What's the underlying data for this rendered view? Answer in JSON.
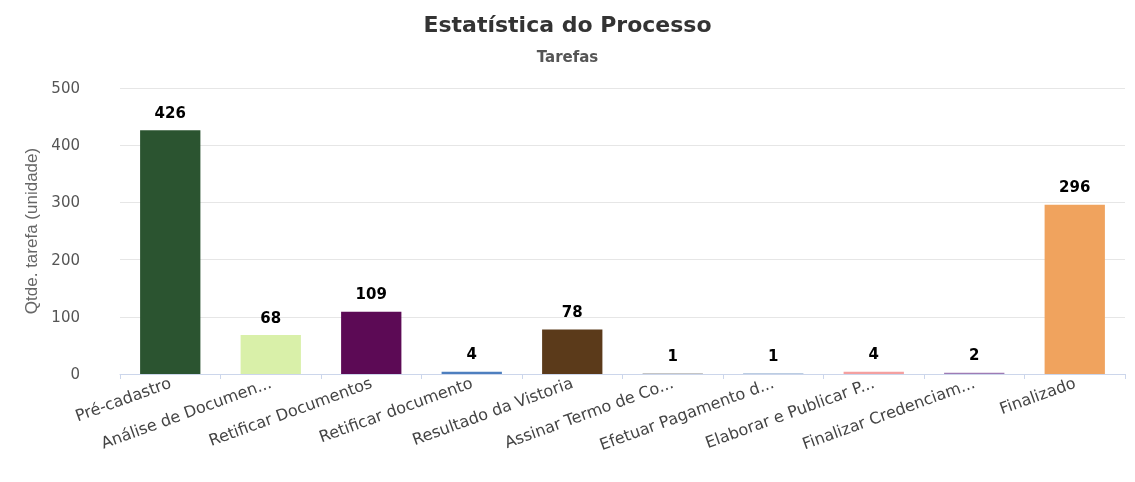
{
  "chart_data": {
    "type": "bar",
    "title": "Estatística do Processo",
    "subtitle": "Tarefas",
    "ylabel": "Qtde. tarefa (unidade)",
    "categories": [
      "Pré-cadastro",
      "Análise de Documen...",
      "Retificar Documentos",
      "Retificar documento",
      "Resultado da Vistoria",
      "Assinar Termo de Co...",
      "Efetuar Pagamento d...",
      "Elaborar e Publicar P...",
      "Finalizar Credenciam...",
      "Finalizado"
    ],
    "values": [
      426,
      68,
      109,
      4,
      78,
      1,
      1,
      4,
      2,
      296
    ],
    "colors": [
      "#2b5430",
      "#d9f0a9",
      "#5c0a55",
      "#4e7fbf",
      "#5b3a1a",
      "#8c8c8c",
      "#7a9cc6",
      "#f4a0a0",
      "#9e7bb5",
      "#f0a35e"
    ],
    "ylim": [
      0,
      500
    ],
    "yticks": [
      0,
      100,
      200,
      300,
      400,
      500
    ],
    "grid": "y",
    "data_labels": true
  }
}
